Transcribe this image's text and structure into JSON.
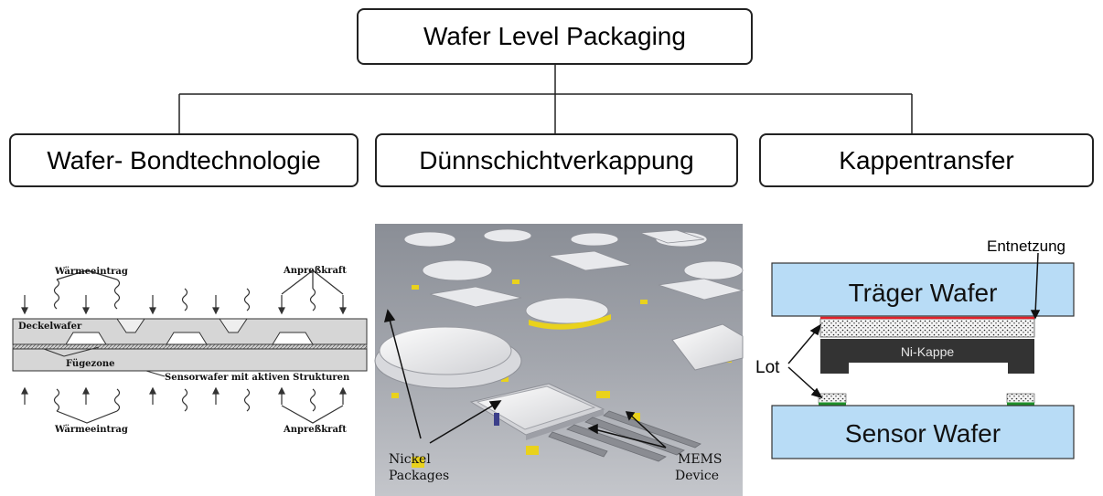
{
  "root": {
    "label": "Wafer Level Packaging"
  },
  "branches": [
    {
      "label": "Wafer- Bondtechnologie"
    },
    {
      "label": "Dünnschichtverkappung"
    },
    {
      "label": "Kappentransfer"
    }
  ],
  "bond_figure": {
    "heat_top": "Wärmeeintrag",
    "force_top": "Anpreßkraft",
    "cap_wafer": "Deckelwafer",
    "joint_zone": "Fügezone",
    "sensor_wafer": "Sensorwafer mit aktiven Strukturen",
    "heat_bottom": "Wärmeeintrag",
    "force_bottom": "Anpreßkraft"
  },
  "thinfilm_figure": {
    "label_nickel_1": "Nickel",
    "label_nickel_2": "Packages",
    "label_mems_1": "MEMS",
    "label_mems_2": "Device"
  },
  "transfer_figure": {
    "dewetting": "Entnetzung",
    "carrier_wafer": "Träger Wafer",
    "ni_cap": "Ni-Kappe",
    "solder": "Lot",
    "sensor_wafer": "Sensor Wafer"
  },
  "colors": {
    "wafer_blue": "#b8dcf6",
    "cap_dark": "#333333",
    "dewetting_red": "#e0202a",
    "solder_green": "#1f8f2a",
    "pad_yellow": "#e8d21a",
    "photo_floor": "#9ea1a8"
  }
}
